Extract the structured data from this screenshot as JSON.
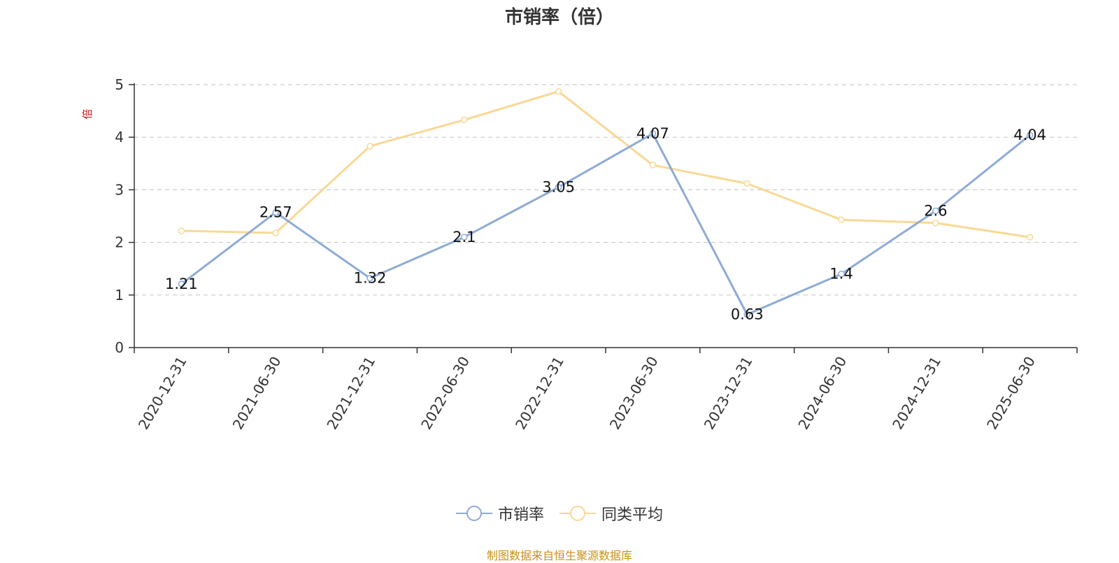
{
  "title": "市销率（倍）",
  "source": "制图数据来自恒生聚源数据库",
  "colors": {
    "series1": "#8eabd6",
    "series2": "#f9d896",
    "unit_label": "#dd1111",
    "source": "#c8901a"
  },
  "legend": [
    {
      "label": "市销率",
      "color": "#8eabd6",
      "icon": "circle-line-icon"
    },
    {
      "label": "同类平均",
      "color": "#f9d896",
      "icon": "circle-line-icon"
    }
  ],
  "chart_data": {
    "type": "line",
    "title": "市销率（倍）",
    "ylabel": "倍",
    "xlabel": "",
    "ylim": [
      0,
      5
    ],
    "yticks": [
      0,
      1,
      2,
      3,
      4,
      5
    ],
    "grid": true,
    "legend_position": "bottom-center",
    "categories": [
      "2020-12-31",
      "2021-06-30",
      "2021-12-31",
      "2022-06-30",
      "2022-12-31",
      "2023-06-30",
      "2023-12-31",
      "2024-06-30",
      "2024-12-31",
      "2025-06-30"
    ],
    "series": [
      {
        "name": "市销率",
        "values": [
          1.21,
          2.57,
          1.32,
          2.1,
          3.05,
          4.07,
          0.63,
          1.4,
          2.6,
          4.04
        ],
        "data_labels": [
          "1.21",
          "2.57",
          "1.32",
          "2.1",
          "3.05",
          "4.07",
          "0.63",
          "1.4",
          "2.6",
          "4.04"
        ]
      },
      {
        "name": "同类平均",
        "values": [
          2.22,
          2.18,
          3.83,
          4.33,
          4.87,
          3.47,
          3.12,
          2.43,
          2.37,
          2.1
        ]
      }
    ]
  }
}
